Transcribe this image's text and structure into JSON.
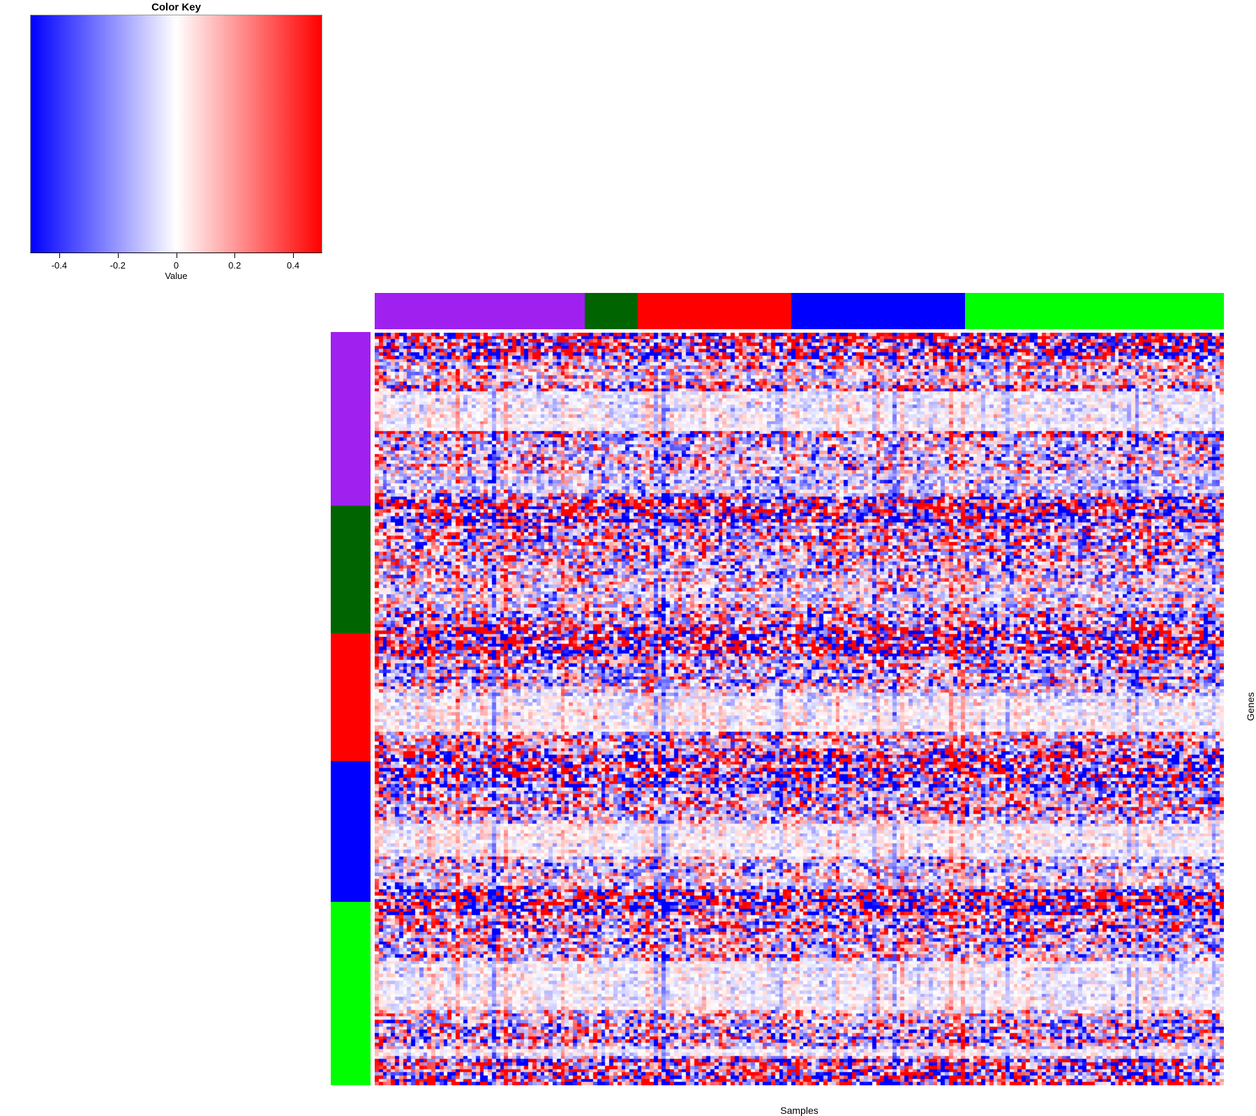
{
  "color_key": {
    "title": "Color Key",
    "axis_label": "Value",
    "ticks": [
      "-0.4",
      "-0.2",
      "0",
      "0.2",
      "0.4"
    ],
    "tick_values": [
      -0.4,
      -0.2,
      0,
      0.2,
      0.4
    ],
    "domain": [
      -0.5,
      0.5
    ],
    "low_color": "#0000FF",
    "mid_color": "#FFFFFF",
    "high_color": "#FF0000"
  },
  "chart_data": {
    "type": "heatmap",
    "xlabel": "Samples",
    "ylabel": "Genes",
    "value_label": "Value",
    "colormap": {
      "low": "#0000FF",
      "mid": "#FFFFFF",
      "high": "#FF0000",
      "domain": [
        -0.5,
        0.5
      ]
    },
    "color_key_ticks": [
      -0.4,
      -0.2,
      0,
      0.2,
      0.4
    ],
    "n_cols": 210,
    "n_rows": 230,
    "col_groups": [
      {
        "name": "group-purple",
        "color": "#A020F0",
        "count": 52
      },
      {
        "name": "group-darkgreen",
        "color": "#006400",
        "count": 13
      },
      {
        "name": "group-red",
        "color": "#FF0000",
        "count": 38
      },
      {
        "name": "group-blue",
        "color": "#0000FF",
        "count": 43
      },
      {
        "name": "group-green",
        "color": "#00FF00",
        "count": 64
      }
    ],
    "row_groups": [
      {
        "name": "group-purple",
        "color": "#A020F0",
        "count": 53
      },
      {
        "name": "group-darkgreen",
        "color": "#006400",
        "count": 39
      },
      {
        "name": "group-red",
        "color": "#FF0000",
        "count": 39
      },
      {
        "name": "group-blue",
        "color": "#0000FF",
        "count": 43
      },
      {
        "name": "group-green",
        "color": "#00FF00",
        "count": 56
      }
    ],
    "pattern": {
      "seed": 7,
      "hot_row_ranges": [
        [
          0,
          8
        ],
        [
          50,
          58
        ],
        [
          89,
          98
        ],
        [
          128,
          139
        ],
        [
          170,
          178
        ],
        [
          222,
          230
        ]
      ],
      "pale_row_ranges": [
        [
          18,
          30
        ],
        [
          111,
          122
        ],
        [
          150,
          160
        ],
        [
          192,
          207
        ],
        [
          219,
          221
        ]
      ],
      "blue_col_fraction": 0.07,
      "red_col_fraction": 0.05
    }
  }
}
